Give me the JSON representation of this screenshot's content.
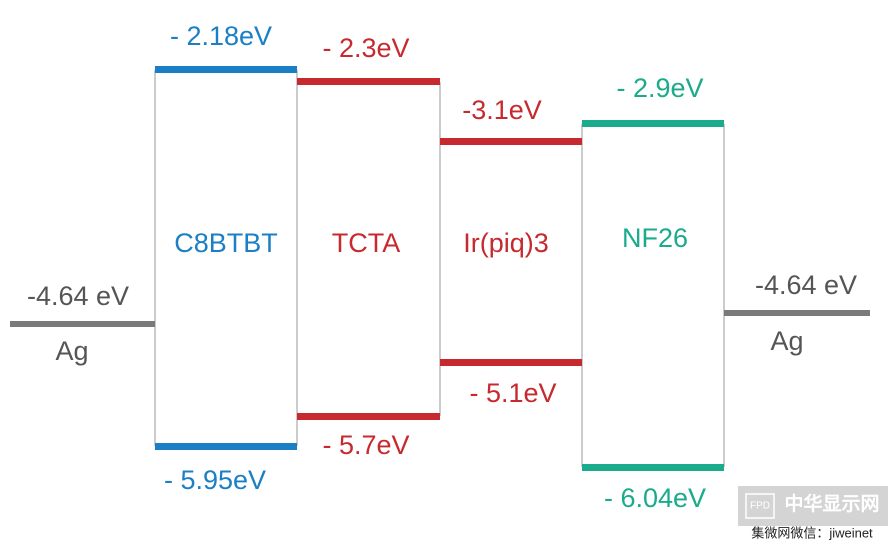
{
  "electrodes": [
    {
      "name": "Ag",
      "level": "-4.64 eV"
    },
    {
      "name": "Ag",
      "level": "-4.64 eV"
    }
  ],
  "layers": [
    {
      "name": "C8BTBT",
      "top": "- 2.18eV",
      "bottom": "- 5.95eV"
    },
    {
      "name": "TCTA",
      "top": "- 2.3eV",
      "bottom": "- 5.7eV"
    },
    {
      "name": "Ir(piq)3",
      "top": "-3.1eV",
      "bottom": "- 5.1eV"
    },
    {
      "name": "NF26",
      "top": "- 2.9eV",
      "bottom": "- 6.04eV"
    }
  ],
  "watermark": {
    "logo": "FPD",
    "site": "中华显示网",
    "caption": "集微网微信：jiweinet"
  }
}
